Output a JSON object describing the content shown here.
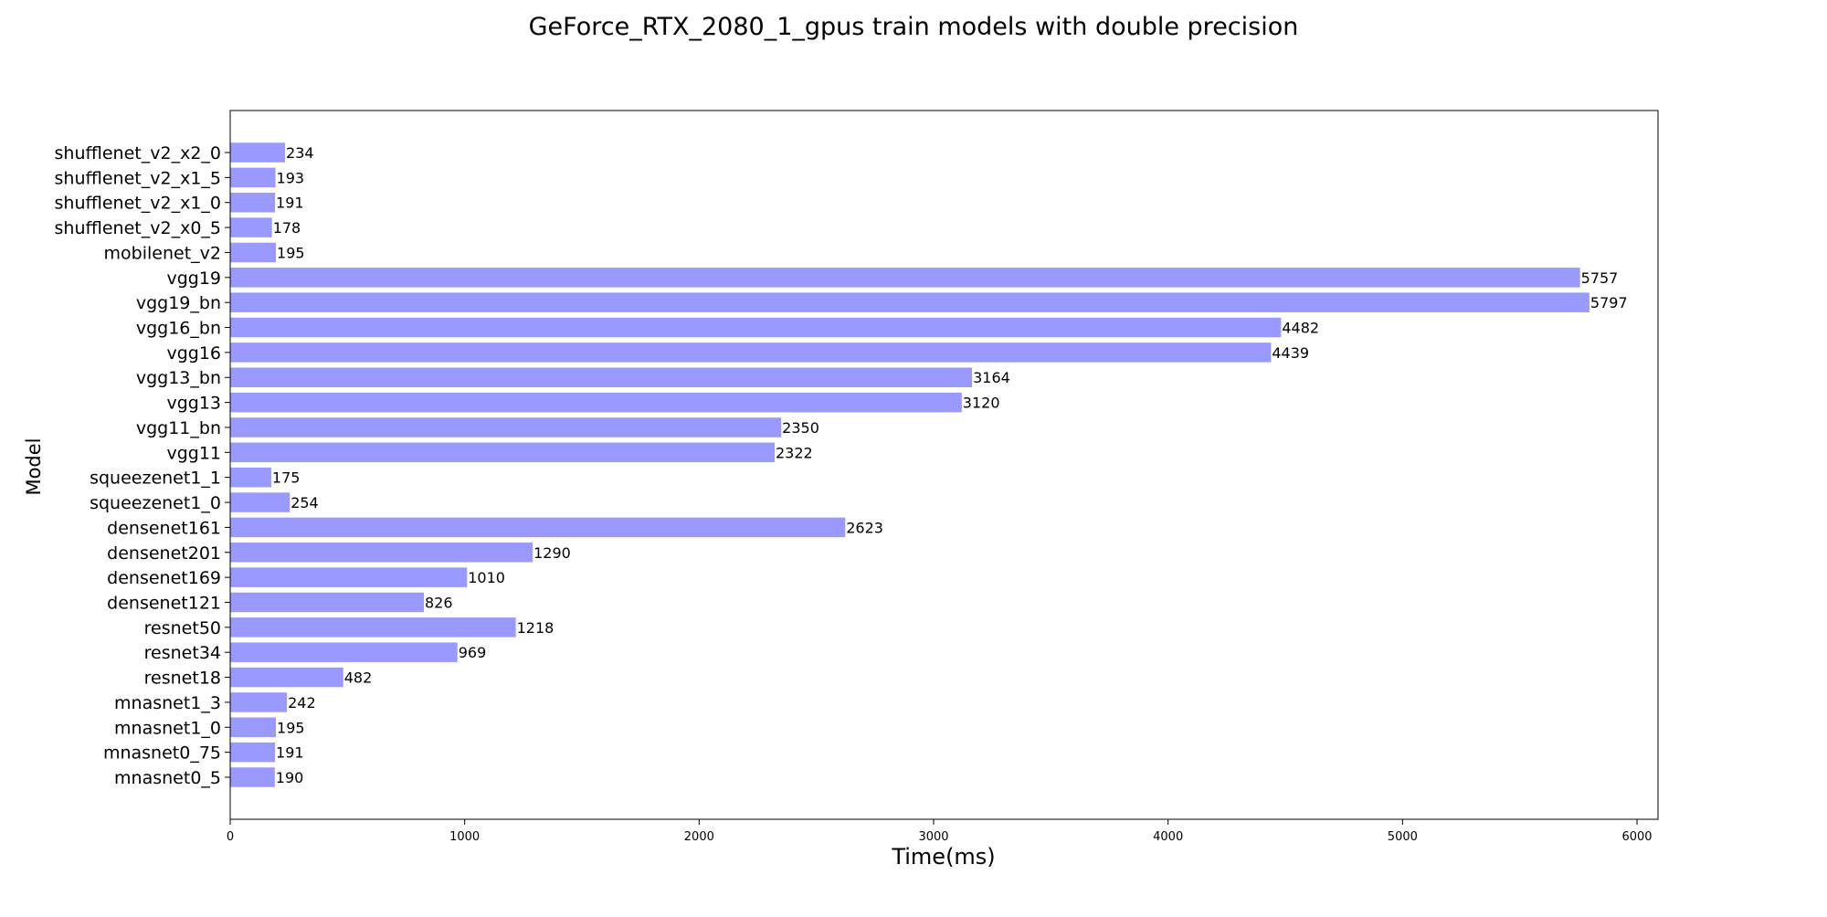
{
  "chart_data": {
    "type": "bar",
    "orientation": "horizontal",
    "title": "GeForce_RTX_2080_1_gpus train models with double precision",
    "xlabel": "Time(ms)",
    "ylabel": "Model",
    "xlim": [
      0,
      6090
    ],
    "xticks": [
      0,
      1000,
      2000,
      3000,
      4000,
      5000,
      6000
    ],
    "bar_color": "#9999ff",
    "grid": false,
    "legend": "none",
    "categories": [
      "mnasnet0_5",
      "mnasnet0_75",
      "mnasnet1_0",
      "mnasnet1_3",
      "resnet18",
      "resnet34",
      "resnet50",
      "densenet121",
      "densenet169",
      "densenet201",
      "densenet161",
      "squeezenet1_0",
      "squeezenet1_1",
      "vgg11",
      "vgg11_bn",
      "vgg13",
      "vgg13_bn",
      "vgg16",
      "vgg16_bn",
      "vgg19_bn",
      "vgg19",
      "mobilenet_v2",
      "shufflenet_v2_x0_5",
      "shufflenet_v2_x1_0",
      "shufflenet_v2_x1_5",
      "shufflenet_v2_x2_0"
    ],
    "values": [
      190,
      191,
      195,
      242,
      482,
      969,
      1218,
      826,
      1010,
      1290,
      2623,
      254,
      175,
      2322,
      2350,
      3120,
      3164,
      4439,
      4482,
      5797,
      5757,
      195,
      178,
      191,
      193,
      234
    ]
  }
}
